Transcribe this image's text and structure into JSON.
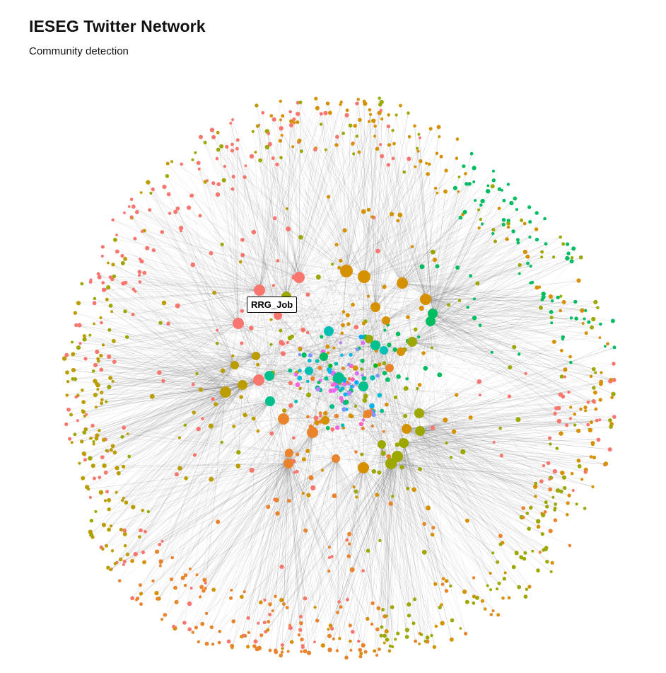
{
  "chart": {
    "title": "IESEG Twitter Network",
    "subtitle": "Community detection"
  },
  "chart_data": {
    "type": "network",
    "layout": "force-directed",
    "tooltip_node": "RRG_Job",
    "community_colors": [
      "#F8766D",
      "#E9842C",
      "#D69100",
      "#BC9D00",
      "#9CA700",
      "#6FB000",
      "#00B813",
      "#00BD61",
      "#00C08E",
      "#00C0B4",
      "#00BDD4",
      "#00B5EE",
      "#00A7FF",
      "#7F96FF",
      "#BC81FF",
      "#E26EF7",
      "#F863DF",
      "#FF62BF",
      "#FF6A9A"
    ],
    "edge_color": "#555555",
    "hubs": [
      {
        "community": 0
      },
      {
        "community": 0
      },
      {
        "community": 0
      },
      {
        "community": 0
      },
      {
        "community": 0
      },
      {
        "community": 1
      },
      {
        "community": 1
      },
      {
        "community": 1
      },
      {
        "community": 1
      },
      {
        "community": 1
      },
      {
        "community": 1
      },
      {
        "community": 1
      },
      {
        "community": 2
      },
      {
        "community": 2
      },
      {
        "community": 2
      },
      {
        "community": 2
      },
      {
        "community": 2
      },
      {
        "community": 2
      },
      {
        "community": 2
      },
      {
        "community": 2
      },
      {
        "community": 2
      },
      {
        "community": 2
      },
      {
        "community": 3
      },
      {
        "community": 3
      },
      {
        "community": 3
      },
      {
        "community": 3
      },
      {
        "community": 4
      },
      {
        "community": 4
      },
      {
        "community": 4
      },
      {
        "community": 4
      },
      {
        "community": 4
      },
      {
        "community": 4
      },
      {
        "community": 4
      },
      {
        "community": 4
      },
      {
        "community": 4
      },
      {
        "community": 7
      },
      {
        "community": 7
      },
      {
        "community": 7
      },
      {
        "community": 8
      },
      {
        "community": 8
      },
      {
        "community": 8
      },
      {
        "community": 8
      },
      {
        "community": 8
      },
      {
        "community": 9
      },
      {
        "community": 9
      },
      {
        "community": 9
      }
    ]
  }
}
